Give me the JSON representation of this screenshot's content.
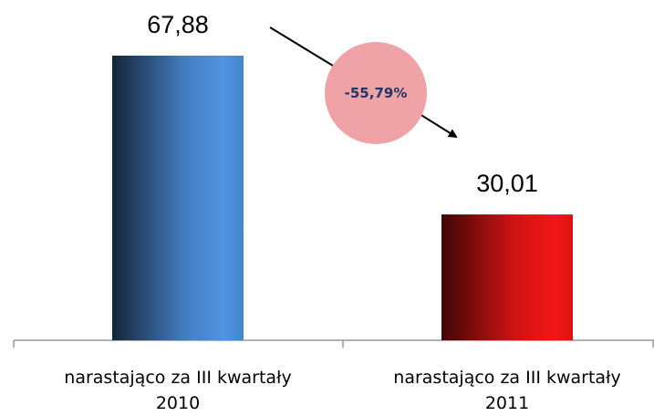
{
  "chart_data": {
    "type": "bar",
    "categories": [
      "narastająco za III kwartały\n2010",
      "narastająco za III kwartały\n2011"
    ],
    "values": [
      67.88,
      30.01
    ],
    "value_labels": [
      "67,88",
      "30,01"
    ],
    "colors": [
      "#4f93e3",
      "#f21616"
    ],
    "annotation": "-55,79%"
  }
}
